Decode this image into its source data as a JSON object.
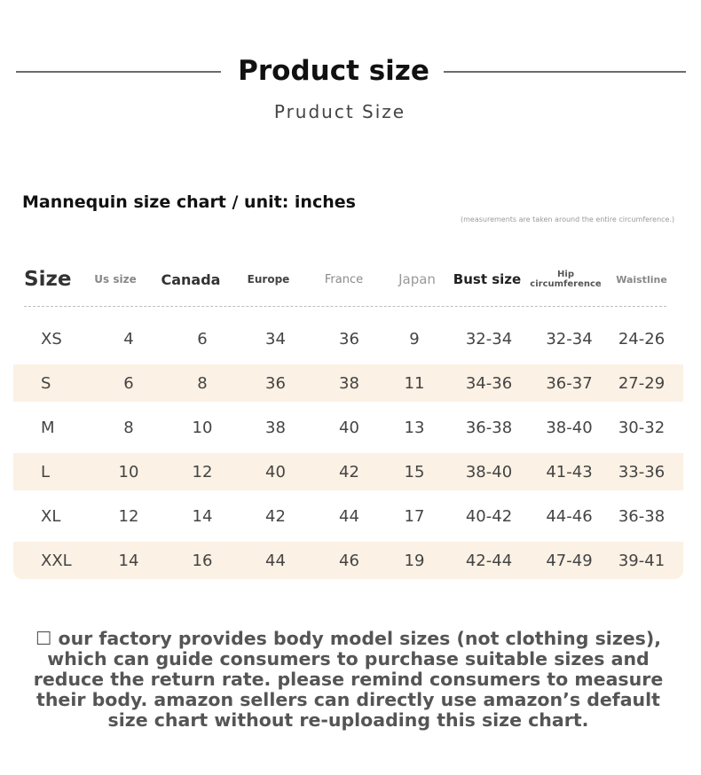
{
  "header": {
    "title": "Product size",
    "subtitle": "Pruduct Size"
  },
  "chart": {
    "title": "Mannequin size chart / unit: inches",
    "note": "(measurements are taken around the entire circumference.)",
    "columns": [
      "Size",
      "Us size",
      "Canada",
      "Europe",
      "France",
      "Japan",
      "Bust size",
      "Hip circumference",
      "Waistline"
    ],
    "rows": [
      [
        "XS",
        "4",
        "6",
        "34",
        "36",
        "9",
        "32-34",
        "32-34",
        "24-26"
      ],
      [
        "S",
        "6",
        "8",
        "36",
        "38",
        "11",
        "34-36",
        "36-37",
        "27-29"
      ],
      [
        "M",
        "8",
        "10",
        "38",
        "40",
        "13",
        "36-38",
        "38-40",
        "30-32"
      ],
      [
        "L",
        "10",
        "12",
        "40",
        "42",
        "15",
        "38-40",
        "41-43",
        "33-36"
      ],
      [
        "XL",
        "12",
        "14",
        "42",
        "44",
        "17",
        "40-42",
        "44-46",
        "36-38"
      ],
      [
        "XXL",
        "14",
        "16",
        "44",
        "46",
        "19",
        "42-44",
        "47-49",
        "39-41"
      ]
    ]
  },
  "footer": {
    "text": "☐ our factory provides body model sizes (not clothing sizes), which can guide consumers to purchase suitable sizes and reduce the return rate. please remind consumers to measure their body. amazon sellers can directly use amazon’s default size chart without re-uploading this size chart."
  },
  "colors": {
    "row_shade": "#fbf1e4",
    "header_line": "#6b6b6b"
  }
}
